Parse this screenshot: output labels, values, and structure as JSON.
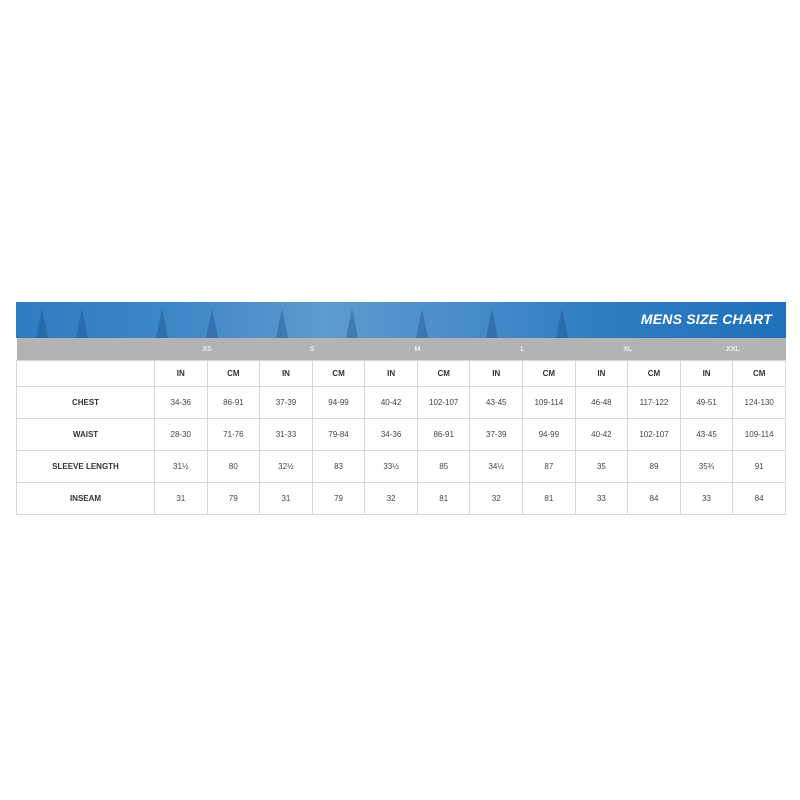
{
  "title": "MENS SIZE CHART",
  "colors": {
    "banner": "#2f7cc0",
    "size_bar": "#b3b3b3"
  },
  "sizes": [
    "XS",
    "S",
    "M",
    "L",
    "XL",
    "XXL"
  ],
  "units": [
    "IN",
    "CM",
    "IN",
    "CM",
    "IN",
    "CM",
    "IN",
    "CM",
    "IN",
    "CM",
    "IN",
    "CM"
  ],
  "rows": [
    {
      "label": "CHEST",
      "values": [
        "34-36",
        "86-91",
        "37-39",
        "94-99",
        "40-42",
        "102-107",
        "43-45",
        "109-114",
        "46-48",
        "117-122",
        "49-51",
        "124-130"
      ]
    },
    {
      "label": "WAIST",
      "values": [
        "28-30",
        "71-76",
        "31-33",
        "79-84",
        "34-36",
        "86-91",
        "37-39",
        "94-99",
        "40-42",
        "102-107",
        "43-45",
        "109-114"
      ]
    },
    {
      "label": "SLEEVE LENGTH",
      "values": [
        "31½",
        "80",
        "32½",
        "83",
        "33½",
        "85",
        "34½",
        "87",
        "35",
        "89",
        "35¾",
        "91"
      ]
    },
    {
      "label": "INSEAM",
      "values": [
        "31",
        "79",
        "31",
        "79",
        "32",
        "81",
        "32",
        "81",
        "33",
        "84",
        "33",
        "84"
      ]
    }
  ]
}
